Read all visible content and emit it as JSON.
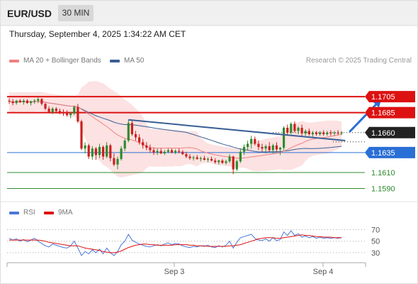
{
  "header": {
    "symbol": "EUR/USD",
    "timeframe": "30 MIN"
  },
  "datetime": "Thursday, September 4, 2025 1:34:22 AM CET",
  "legend": {
    "ma20": {
      "label": "MA 20 + Bollinger Bands",
      "color": "#f08080"
    },
    "ma50": {
      "label": "MA 50",
      "color": "#3a5f95"
    }
  },
  "credit": "Research © 2025 Trading Central",
  "rsi_legend": {
    "rsi": {
      "label": "RSI",
      "color": "#4a78d8"
    },
    "ma9": {
      "label": "9MA",
      "color": "#dd1111"
    }
  },
  "chart_data": [
    {
      "type": "candlestick",
      "title": "EUR/USD 30 MIN",
      "ylim": [
        1.1578,
        1.1722
      ],
      "x_ticks": [
        "Sep 3",
        "Sep 4"
      ],
      "levels": [
        {
          "label": "1.1705",
          "value": 1.1705,
          "kind": "resistance",
          "color": "#dd1111"
        },
        {
          "label": "1.1685",
          "value": 1.1685,
          "kind": "resistance",
          "color": "#dd1111"
        },
        {
          "label": "1.1660",
          "value": 1.166,
          "kind": "last-price",
          "color": "#222222"
        },
        {
          "label": "1.1635",
          "value": 1.1635,
          "kind": "pivot",
          "color": "#2a6fd6"
        },
        {
          "label": "1.1610",
          "value": 1.161,
          "kind": "support",
          "color": "#2e8b2e"
        },
        {
          "label": "1.1590",
          "value": 1.159,
          "kind": "support",
          "color": "#2e8b2e"
        }
      ],
      "trendline": {
        "from": {
          "bar": 33,
          "value": 1.1676
        },
        "to": {
          "bar": 93,
          "value": 1.165
        }
      },
      "projection": {
        "from": {
          "bar": 93,
          "value": 1.166
        },
        "to": {
          "bar": 103,
          "value": 1.1702
        }
      },
      "ohlc": [
        [
          1.17,
          1.1703,
          1.1696,
          1.1699
        ],
        [
          1.1699,
          1.1702,
          1.1694,
          1.1697
        ],
        [
          1.1697,
          1.1701,
          1.1695,
          1.17
        ],
        [
          1.17,
          1.1702,
          1.1697,
          1.1698
        ],
        [
          1.1698,
          1.1702,
          1.1695,
          1.17
        ],
        [
          1.17,
          1.1702,
          1.1696,
          1.1697
        ],
        [
          1.1697,
          1.17,
          1.1694,
          1.1699
        ],
        [
          1.1699,
          1.1702,
          1.1696,
          1.17
        ],
        [
          1.17,
          1.1704,
          1.1697,
          1.1702
        ],
        [
          1.1702,
          1.1703,
          1.1694,
          1.1696
        ],
        [
          1.1696,
          1.1697,
          1.1688,
          1.169
        ],
        [
          1.169,
          1.1693,
          1.1684,
          1.1686
        ],
        [
          1.1686,
          1.1692,
          1.1683,
          1.169
        ],
        [
          1.169,
          1.1692,
          1.1684,
          1.1687
        ],
        [
          1.1687,
          1.169,
          1.1683,
          1.1685
        ],
        [
          1.1685,
          1.1689,
          1.1681,
          1.1684
        ],
        [
          1.1684,
          1.1688,
          1.168,
          1.1682
        ],
        [
          1.1682,
          1.1686,
          1.1678,
          1.1684
        ],
        [
          1.1684,
          1.1694,
          1.1682,
          1.1692
        ],
        [
          1.1692,
          1.1696,
          1.1672,
          1.1674
        ],
        [
          1.1674,
          1.1676,
          1.1638,
          1.164
        ],
        [
          1.164,
          1.1648,
          1.1634,
          1.1644
        ],
        [
          1.1644,
          1.1646,
          1.1627,
          1.163
        ],
        [
          1.163,
          1.1643,
          1.1626,
          1.164
        ],
        [
          1.164,
          1.1642,
          1.1626,
          1.1632
        ],
        [
          1.1632,
          1.1646,
          1.1628,
          1.1642
        ],
        [
          1.1642,
          1.1644,
          1.1626,
          1.163
        ],
        [
          1.163,
          1.1648,
          1.1628,
          1.1644
        ],
        [
          1.1644,
          1.1646,
          1.1624,
          1.1628
        ],
        [
          1.1628,
          1.1634,
          1.1618,
          1.162
        ],
        [
          1.162,
          1.163,
          1.1614,
          1.1627
        ],
        [
          1.1627,
          1.1643,
          1.1625,
          1.164
        ],
        [
          1.164,
          1.1652,
          1.1637,
          1.165
        ],
        [
          1.165,
          1.1676,
          1.1648,
          1.1672
        ],
        [
          1.1672,
          1.1675,
          1.1656,
          1.1658
        ],
        [
          1.1658,
          1.1662,
          1.165,
          1.1654
        ],
        [
          1.1654,
          1.1658,
          1.1645,
          1.1648
        ],
        [
          1.1648,
          1.1652,
          1.164,
          1.1644
        ],
        [
          1.1644,
          1.1648,
          1.1638,
          1.1641
        ],
        [
          1.1641,
          1.1645,
          1.1635,
          1.1638
        ],
        [
          1.1638,
          1.1641,
          1.1632,
          1.1635
        ],
        [
          1.1635,
          1.164,
          1.1632,
          1.1637
        ],
        [
          1.1637,
          1.164,
          1.1633,
          1.1634
        ],
        [
          1.1634,
          1.1638,
          1.1632,
          1.1636
        ],
        [
          1.1636,
          1.164,
          1.1634,
          1.1638
        ],
        [
          1.1638,
          1.164,
          1.1634,
          1.1635
        ],
        [
          1.1635,
          1.1639,
          1.1633,
          1.1637
        ],
        [
          1.1637,
          1.164,
          1.1634,
          1.1636
        ],
        [
          1.1636,
          1.1638,
          1.1632,
          1.1633
        ],
        [
          1.1633,
          1.1636,
          1.1628,
          1.163
        ],
        [
          1.163,
          1.1633,
          1.1626,
          1.1628
        ],
        [
          1.1628,
          1.1631,
          1.1625,
          1.1629
        ],
        [
          1.1629,
          1.1632,
          1.1626,
          1.1627
        ],
        [
          1.1627,
          1.163,
          1.1624,
          1.1628
        ],
        [
          1.1628,
          1.1631,
          1.1625,
          1.1626
        ],
        [
          1.1626,
          1.1629,
          1.1623,
          1.1627
        ],
        [
          1.1627,
          1.163,
          1.1624,
          1.1625
        ],
        [
          1.1625,
          1.1628,
          1.1621,
          1.1623
        ],
        [
          1.1623,
          1.1626,
          1.162,
          1.1625
        ],
        [
          1.1625,
          1.1627,
          1.1621,
          1.1622
        ],
        [
          1.1622,
          1.1626,
          1.162,
          1.1624
        ],
        [
          1.1624,
          1.1633,
          1.1622,
          1.163
        ],
        [
          1.163,
          1.1631,
          1.1608,
          1.1614
        ],
        [
          1.1614,
          1.1626,
          1.1612,
          1.1624
        ],
        [
          1.1624,
          1.164,
          1.1622,
          1.1636
        ],
        [
          1.1636,
          1.1645,
          1.1632,
          1.1642
        ],
        [
          1.1642,
          1.165,
          1.1638,
          1.1646
        ],
        [
          1.1646,
          1.1656,
          1.164,
          1.1652
        ],
        [
          1.1652,
          1.1655,
          1.1644,
          1.1646
        ],
        [
          1.1646,
          1.165,
          1.1638,
          1.1642
        ],
        [
          1.1642,
          1.1646,
          1.1636,
          1.164
        ],
        [
          1.164,
          1.1645,
          1.1634,
          1.1643
        ],
        [
          1.1643,
          1.1648,
          1.1636,
          1.1638
        ],
        [
          1.1638,
          1.1646,
          1.1634,
          1.1644
        ],
        [
          1.1644,
          1.1648,
          1.1636,
          1.1639
        ],
        [
          1.1639,
          1.1642,
          1.1632,
          1.1641
        ],
        [
          1.1641,
          1.1668,
          1.1638,
          1.1666
        ],
        [
          1.1666,
          1.167,
          1.1656,
          1.166
        ],
        [
          1.166,
          1.1673,
          1.1658,
          1.1671
        ],
        [
          1.1671,
          1.1674,
          1.166,
          1.1662
        ],
        [
          1.1662,
          1.1668,
          1.1658,
          1.1666
        ],
        [
          1.1666,
          1.167,
          1.1656,
          1.1659
        ],
        [
          1.1659,
          1.1664,
          1.1656,
          1.1662
        ],
        [
          1.1662,
          1.1665,
          1.1656,
          1.1658
        ],
        [
          1.1658,
          1.1662,
          1.1655,
          1.166
        ],
        [
          1.166,
          1.1662,
          1.1656,
          1.1658
        ],
        [
          1.1658,
          1.1662,
          1.1656,
          1.166
        ],
        [
          1.166,
          1.1663,
          1.1656,
          1.1658
        ],
        [
          1.1658,
          1.1662,
          1.1656,
          1.166
        ],
        [
          1.166,
          1.1663,
          1.1656,
          1.1659
        ],
        [
          1.1659,
          1.1662,
          1.1656,
          1.166
        ],
        [
          1.166,
          1.1663,
          1.1657,
          1.1659
        ],
        [
          1.1659,
          1.1662,
          1.1657,
          1.166
        ]
      ]
    },
    {
      "type": "line",
      "title": "RSI",
      "ylim": [
        20,
        78
      ],
      "y_ticks": [
        70,
        50,
        30
      ],
      "series": [
        {
          "name": "RSI",
          "color": "#4a78d8",
          "values": [
            55,
            52,
            54,
            50,
            53,
            49,
            52,
            55,
            50,
            46,
            42,
            40,
            45,
            43,
            41,
            39,
            38,
            42,
            50,
            38,
            25,
            32,
            28,
            35,
            30,
            36,
            28,
            38,
            30,
            25,
            32,
            44,
            50,
            62,
            52,
            48,
            45,
            43,
            41,
            40,
            42,
            44,
            42,
            45,
            47,
            44,
            46,
            45,
            42,
            40,
            39,
            41,
            40,
            42,
            41,
            43,
            40,
            39,
            42,
            40,
            43,
            50,
            38,
            48,
            56,
            58,
            60,
            62,
            55,
            52,
            51,
            54,
            50,
            56,
            51,
            53,
            66,
            60,
            68,
            60,
            63,
            57,
            59,
            56,
            58,
            55,
            57,
            55,
            56,
            55,
            56,
            55,
            56
          ]
        },
        {
          "name": "9MA",
          "color": "#dd1111",
          "values": [
            52,
            52,
            52,
            52,
            52,
            52,
            52,
            52,
            52,
            51,
            50,
            48,
            47,
            46,
            45,
            44,
            43,
            42,
            42,
            42,
            40,
            38,
            37,
            36,
            35,
            34,
            32,
            31,
            30,
            30,
            31,
            33,
            36,
            39,
            41,
            43,
            44,
            45,
            45,
            44,
            44,
            43,
            43,
            43,
            43,
            43,
            44,
            44,
            44,
            44,
            43,
            43,
            42,
            42,
            42,
            41,
            41,
            41,
            41,
            41,
            41,
            42,
            42,
            43,
            44,
            46,
            48,
            50,
            52,
            54,
            55,
            56,
            56,
            56,
            55,
            55,
            56,
            57,
            58,
            59,
            60,
            61,
            60,
            60,
            59,
            58,
            58,
            57,
            57,
            57,
            56,
            56,
            56
          ]
        }
      ]
    }
  ]
}
